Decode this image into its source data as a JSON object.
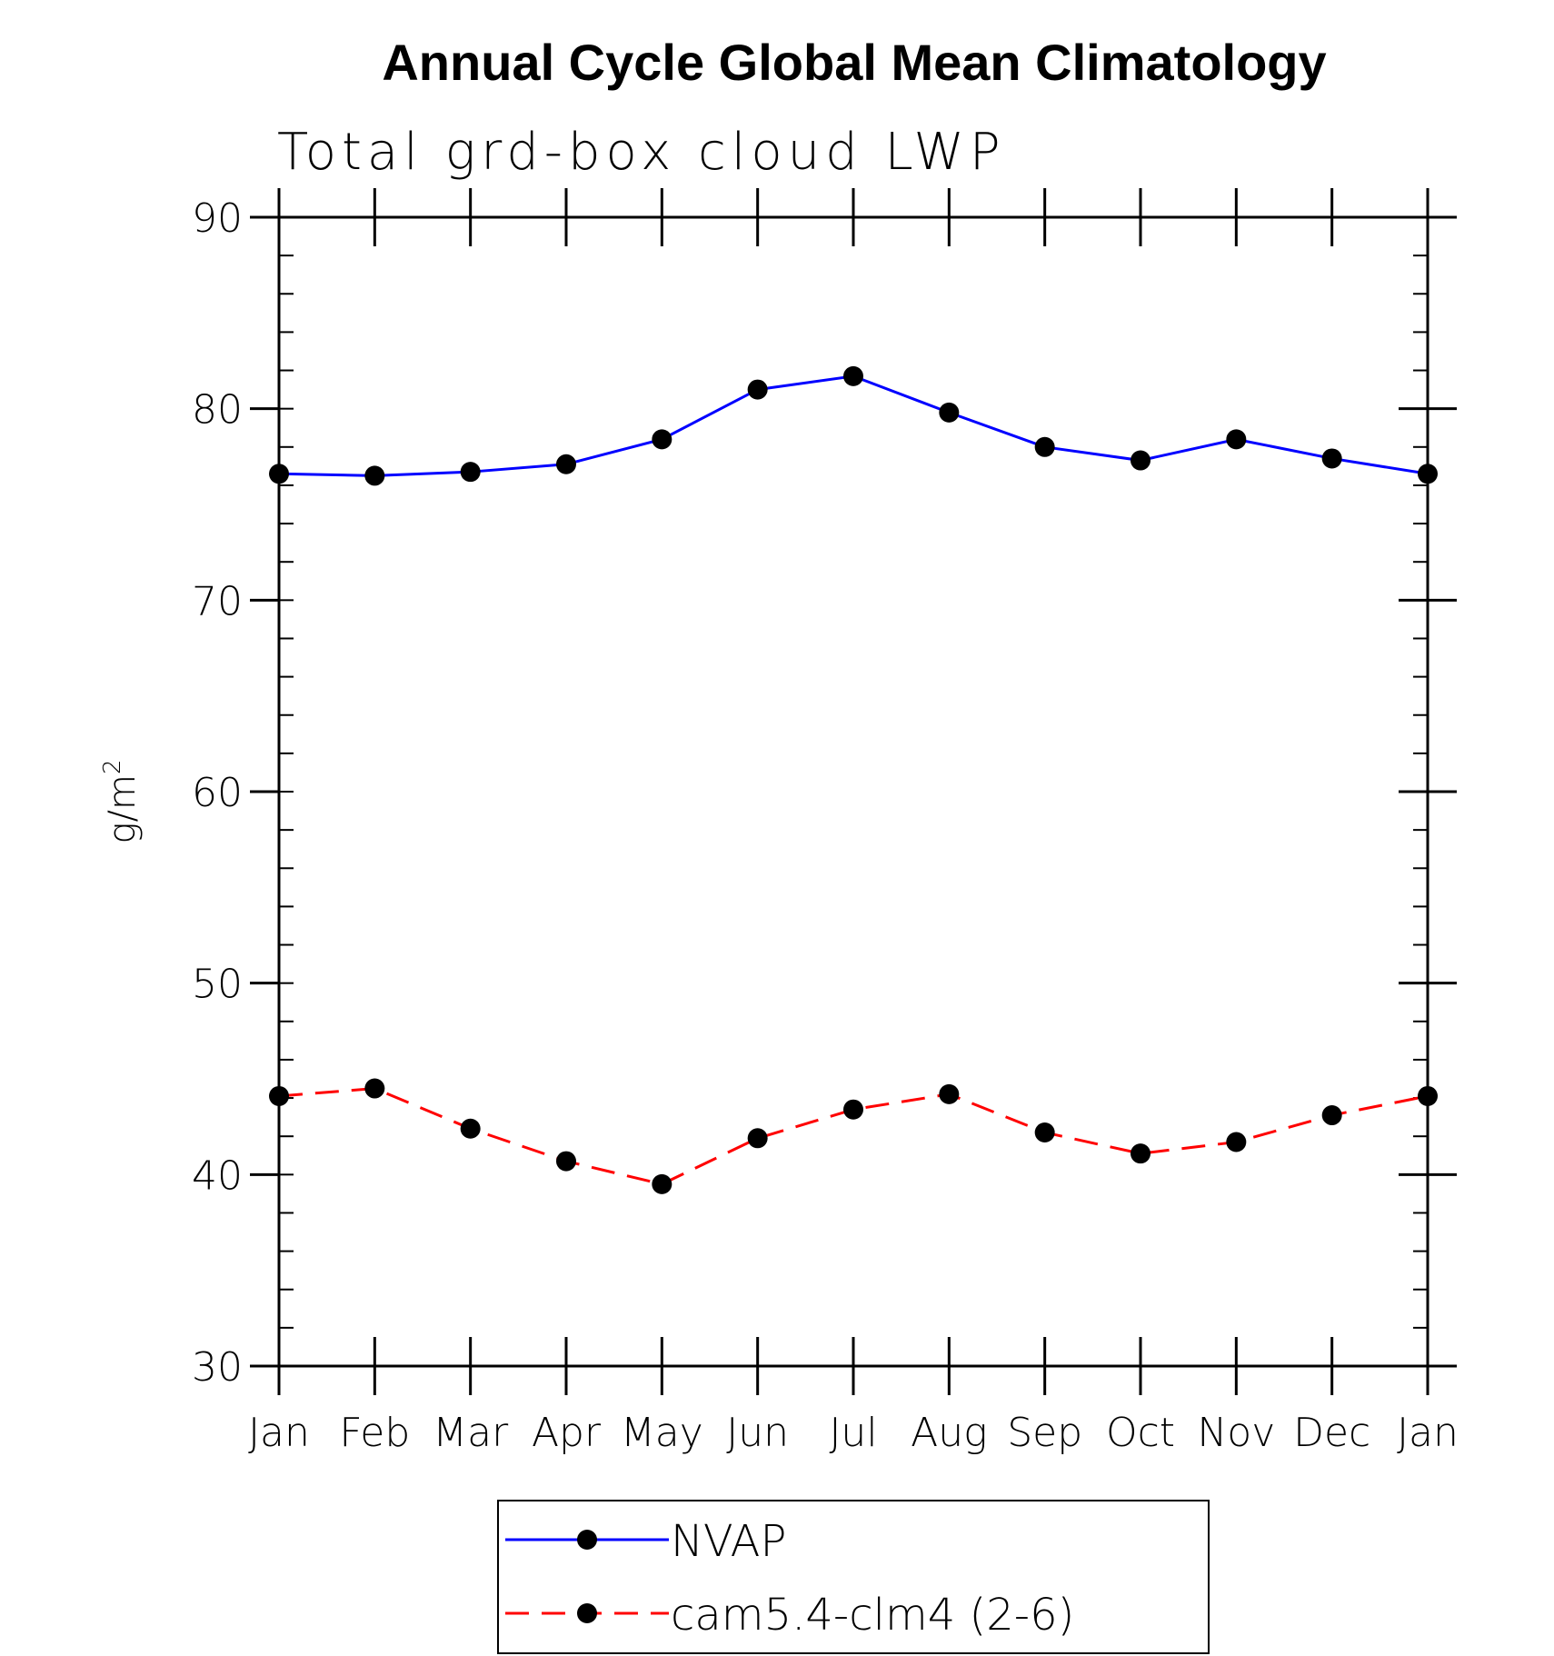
{
  "chart_data": {
    "type": "line",
    "title": "Annual Cycle Global Mean Climatology",
    "subtitle": "Total grd-box cloud LWP",
    "ylabel": "g/m",
    "ylabel_superscript": "2",
    "ylim": [
      30,
      90
    ],
    "yticks": [
      30,
      40,
      50,
      60,
      70,
      80,
      90
    ],
    "y_minor_step": 2,
    "categories": [
      "Jan",
      "Feb",
      "Mar",
      "Apr",
      "May",
      "Jun",
      "Jul",
      "Aug",
      "Sep",
      "Oct",
      "Nov",
      "Dec",
      "Jan"
    ],
    "series": [
      {
        "name": "NVAP",
        "color": "#0000ff",
        "dash": "solid",
        "marker": "filled-circle",
        "marker_color": "#000000",
        "values": [
          76.6,
          76.5,
          76.7,
          77.1,
          78.4,
          81.0,
          81.7,
          79.8,
          78.0,
          77.3,
          78.4,
          77.4,
          76.6
        ]
      },
      {
        "name": "cam5.4-clm4 (2-6)",
        "color": "#ff0000",
        "dash": "dashed",
        "marker": "filled-circle",
        "marker_color": "#000000",
        "values": [
          44.1,
          44.5,
          42.4,
          40.7,
          39.5,
          41.9,
          43.4,
          44.2,
          42.2,
          41.1,
          41.7,
          43.1,
          44.1
        ]
      }
    ],
    "grid": false,
    "legend_position": "bottom-center"
  }
}
